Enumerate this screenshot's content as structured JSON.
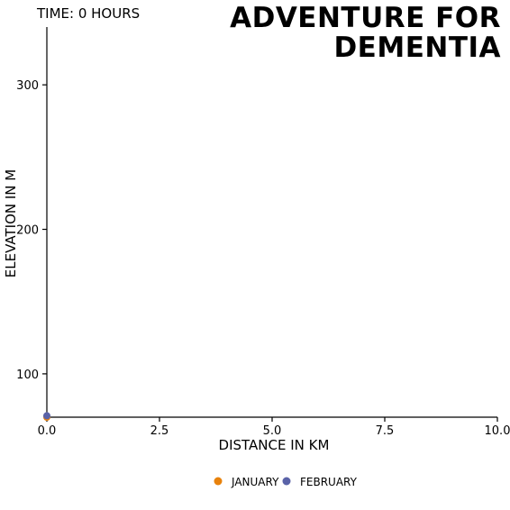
{
  "chart_data": {
    "type": "scatter",
    "title_lines": [
      "ADVENTURE FOR",
      "DEMENTIA"
    ],
    "time_label": "TIME: 0 HOURS",
    "xlabel": "DISTANCE IN KM",
    "ylabel": "ELEVATION IN M",
    "xlim": [
      0,
      10
    ],
    "ylim": [
      70,
      340
    ],
    "x_ticks": [
      0,
      2.5,
      5,
      7.5,
      10
    ],
    "x_tick_labels": [
      "0.0",
      "2.5",
      "5.0",
      "7.5",
      "10.0"
    ],
    "y_ticks": [
      100,
      200,
      300
    ],
    "y_tick_labels": [
      "100",
      "200",
      "300"
    ],
    "grid": false,
    "legend_position": "bottom-center",
    "series": [
      {
        "name": "JANUARY",
        "color": "#e8820c",
        "points": [
          {
            "x": 0,
            "y": 70
          }
        ]
      },
      {
        "name": "FEBRUARY",
        "color": "#5a63a8",
        "points": [
          {
            "x": 0,
            "y": 71
          }
        ]
      }
    ]
  }
}
